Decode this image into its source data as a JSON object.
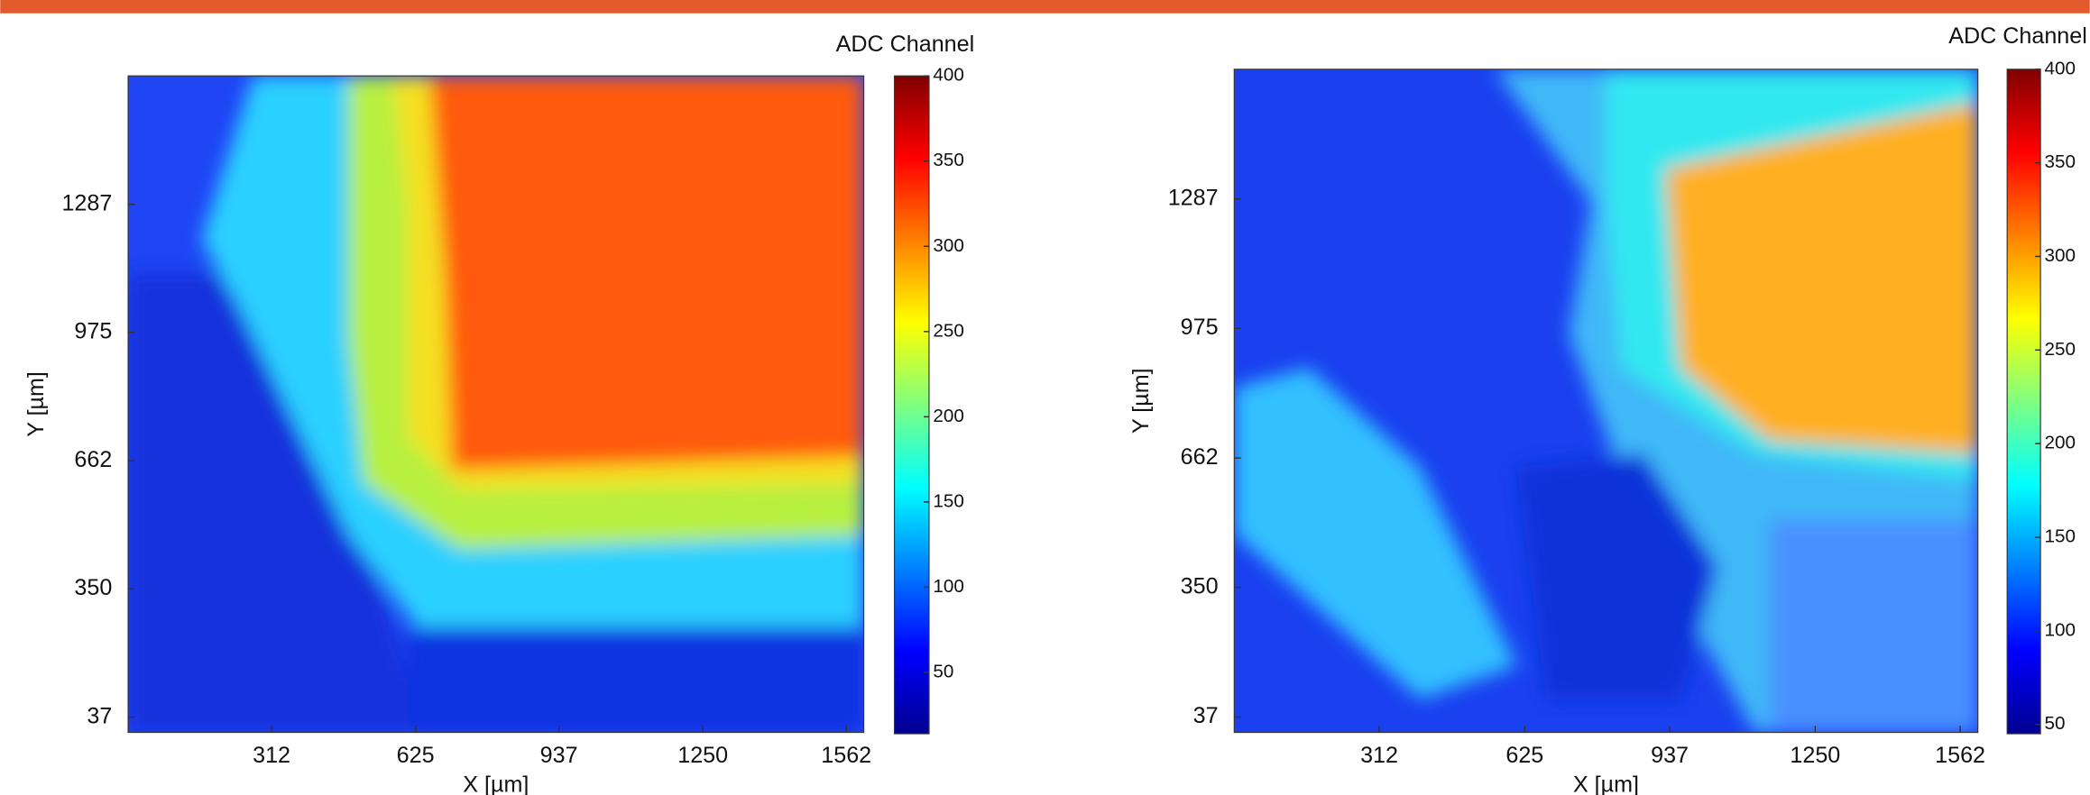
{
  "chart_data": [
    {
      "type": "heatmap",
      "xlabel": "X [µm]",
      "ylabel": "Y [µm]",
      "colorbar_label": "ADC Channel",
      "xlim": [
        0,
        1600
      ],
      "ylim": [
        0,
        1600
      ],
      "xticks": [
        312,
        625,
        937,
        1250,
        1562
      ],
      "yticks": [
        37,
        350,
        662,
        975,
        1287
      ],
      "clim": [
        14,
        400
      ],
      "cticks": [
        50,
        100,
        150,
        200,
        250,
        300,
        350,
        400
      ],
      "colormap": "jet"
    },
    {
      "type": "heatmap",
      "xlabel": "X [µm]",
      "ylabel": "Y [µm]",
      "colorbar_label": "ADC Channel",
      "xlim": [
        0,
        1600
      ],
      "ylim": [
        0,
        1600
      ],
      "xticks": [
        312,
        625,
        937,
        1250,
        1562
      ],
      "yticks": [
        37,
        350,
        662,
        975,
        1287
      ],
      "clim": [
        45,
        400
      ],
      "cticks": [
        50,
        100,
        150,
        200,
        250,
        300,
        350,
        400
      ],
      "colormap": "jet"
    }
  ]
}
